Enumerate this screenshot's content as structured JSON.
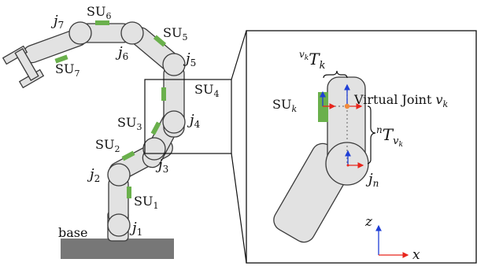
{
  "colors": {
    "link_fill": "#e2e2e2",
    "link_stroke": "#3a3a3a",
    "sensor": "#6ab04c",
    "base": "#777777",
    "axis_x": "#e8251c",
    "axis_z": "#1f3fd6",
    "virtual_joint": "#f08a3c",
    "box": "#111111"
  },
  "overview": {
    "joints": [
      {
        "name": "j",
        "sub": "1"
      },
      {
        "name": "j",
        "sub": "2"
      },
      {
        "name": "j",
        "sub": "3"
      },
      {
        "name": "j",
        "sub": "4"
      },
      {
        "name": "j",
        "sub": "5"
      },
      {
        "name": "j",
        "sub": "6"
      },
      {
        "name": "j",
        "sub": "7"
      }
    ],
    "sensors": [
      {
        "name": "SU",
        "sub": "1"
      },
      {
        "name": "SU",
        "sub": "2"
      },
      {
        "name": "SU",
        "sub": "3"
      },
      {
        "name": "SU",
        "sub": "4"
      },
      {
        "name": "SU",
        "sub": "5"
      },
      {
        "name": "SU",
        "sub": "6"
      },
      {
        "name": "SU",
        "sub": "7"
      }
    ],
    "base_label": "base"
  },
  "detail": {
    "transform_top": {
      "sup": "v",
      "sup_sub": "k",
      "T": "T",
      "T_sub": "k"
    },
    "transform_side": {
      "sup": "n",
      "T": "T",
      "T_sub": "v",
      "T_sub_sub": "k"
    },
    "sensor_label": {
      "name": "SU",
      "sub": "k"
    },
    "virtual_joint_label": {
      "text": "Virtual Joint ",
      "var": "v",
      "sub": "k"
    },
    "joint_label": {
      "name": "j",
      "sub": "n"
    },
    "axes": {
      "x": "x",
      "z": "z"
    }
  }
}
